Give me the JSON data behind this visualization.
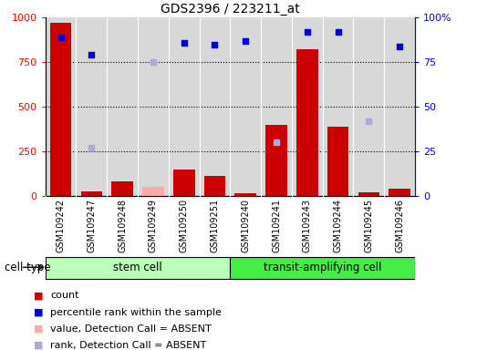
{
  "title": "GDS2396 / 223211_at",
  "samples": [
    "GSM109242",
    "GSM109247",
    "GSM109248",
    "GSM109249",
    "GSM109250",
    "GSM109251",
    "GSM109240",
    "GSM109241",
    "GSM109243",
    "GSM109244",
    "GSM109245",
    "GSM109246"
  ],
  "count_values": [
    970,
    25,
    80,
    null,
    150,
    110,
    15,
    400,
    820,
    390,
    20,
    40
  ],
  "count_absent": [
    null,
    null,
    null,
    50,
    null,
    null,
    null,
    null,
    null,
    null,
    null,
    null
  ],
  "percentile_values": [
    89,
    79,
    null,
    null,
    86,
    85,
    87,
    null,
    92,
    92,
    null,
    84
  ],
  "percentile_absent": [
    null,
    27,
    null,
    75,
    null,
    null,
    null,
    30,
    null,
    null,
    42,
    null
  ],
  "stem_cell_count": 6,
  "transit_cell_count": 6,
  "ylim_left": [
    0,
    1000
  ],
  "ylim_right": [
    0,
    100
  ],
  "yticks_left": [
    0,
    250,
    500,
    750,
    1000
  ],
  "yticks_right": [
    0,
    25,
    50,
    75,
    100
  ],
  "bar_color": "#cc0000",
  "bar_absent_color": "#ffaaaa",
  "dot_color": "#0000cc",
  "dot_absent_color": "#aaaadd",
  "stem_cell_color": "#bbffbb",
  "transit_cell_color": "#44ee44",
  "bg_color": "#d8d8d8",
  "legend_items": [
    {
      "label": "count",
      "color": "#cc0000"
    },
    {
      "label": "percentile rank within the sample",
      "color": "#0000cc"
    },
    {
      "label": "value, Detection Call = ABSENT",
      "color": "#ffaaaa"
    },
    {
      "label": "rank, Detection Call = ABSENT",
      "color": "#aaaadd"
    }
  ]
}
